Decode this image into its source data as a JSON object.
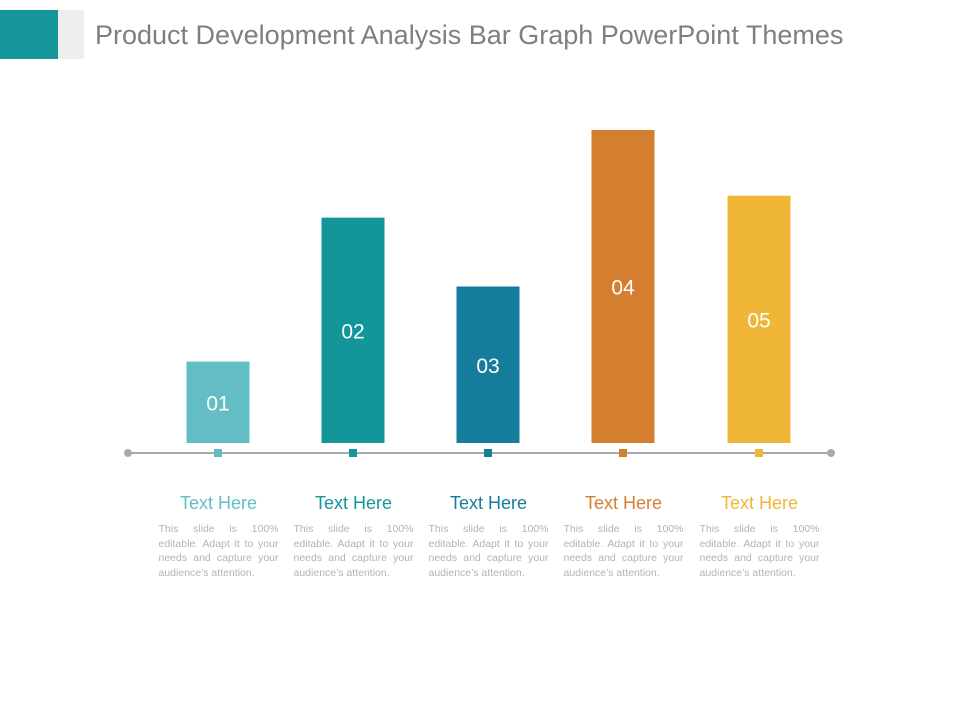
{
  "slide": {
    "title": "Product Development Analysis Bar Graph PowerPoint Themes"
  },
  "colors": {
    "accent": "#14969a",
    "axis": "#aaaaaa",
    "bar_label": "#ffffff"
  },
  "chart_data": {
    "type": "bar",
    "title": "Product Development Analysis Bar Graph PowerPoint Themes",
    "categories": [
      "01",
      "02",
      "03",
      "04",
      "05"
    ],
    "values": [
      26,
      72,
      50,
      100,
      79
    ],
    "value_scale": "relative height (tallest bar = 100)",
    "ylim": [
      0,
      100
    ],
    "grid": false,
    "colors": [
      "#62bec4",
      "#13969a",
      "#167c9c",
      "#d47f30",
      "#f0b637"
    ],
    "xlabel": "",
    "ylabel": ""
  },
  "captions": [
    {
      "title": "Text Here",
      "body": "This slide is 100% editable. Adapt it to your needs and capture your audience’s attention."
    },
    {
      "title": "Text Here",
      "body": "This slide is 100% editable. Adapt it to your needs and capture your audience’s attention."
    },
    {
      "title": "Text Here",
      "body": "This slide is 100% editable. Adapt it to your needs and capture your audience’s attention."
    },
    {
      "title": "Text Here",
      "body": "This slide is 100% editable. Adapt it to your needs and capture your audience’s attention."
    },
    {
      "title": "Text Here",
      "body": "This slide is 100% editable. Adapt it to your needs and capture your audience’s attention."
    }
  ]
}
